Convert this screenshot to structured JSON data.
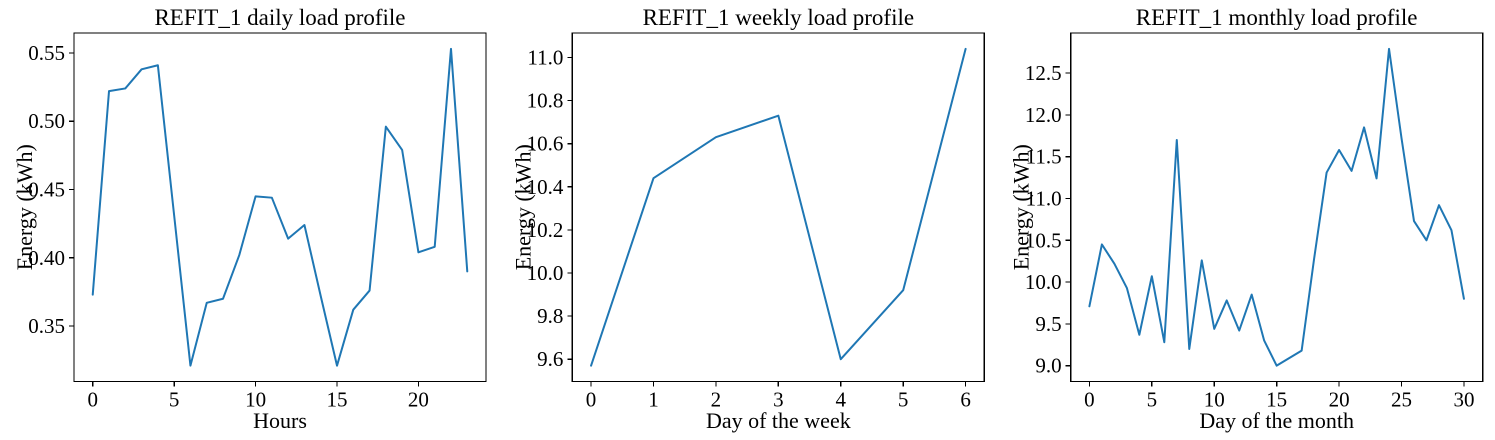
{
  "figure": {
    "background_color": "#ffffff",
    "line_color": "#1f77b4",
    "axis_color": "#000000",
    "text_color": "#000000"
  },
  "chart_data": [
    {
      "id": "daily",
      "type": "line",
      "title": "REFIT_1 daily load profile",
      "xlabel": "Hours",
      "ylabel": "Energy (kWh)",
      "x": [
        0,
        1,
        2,
        3,
        4,
        5,
        6,
        7,
        8,
        9,
        10,
        11,
        12,
        13,
        14,
        15,
        16,
        17,
        18,
        19,
        20,
        21,
        22,
        23
      ],
      "values": [
        0.373,
        0.522,
        0.524,
        0.538,
        0.541,
        0.431,
        0.321,
        0.367,
        0.37,
        0.402,
        0.445,
        0.444,
        0.414,
        0.424,
        0.372,
        0.321,
        0.362,
        0.376,
        0.496,
        0.479,
        0.404,
        0.408,
        0.553,
        0.39
      ],
      "xlim": [
        -1.15,
        24.15
      ],
      "ylim": [
        0.3094,
        0.5646
      ],
      "xticks": [
        0,
        5,
        10,
        15,
        20
      ],
      "xtick_labels": [
        "0",
        "5",
        "10",
        "15",
        "20"
      ],
      "yticks": [
        0.35,
        0.4,
        0.45,
        0.5,
        0.55
      ],
      "ytick_labels": [
        "0.35",
        "0.40",
        "0.45",
        "0.50",
        "0.55"
      ],
      "grid": false,
      "legend": "none"
    },
    {
      "id": "weekly",
      "type": "line",
      "title": "REFIT_1 weekly load profile",
      "xlabel": "Day of the week",
      "ylabel": "Energy (kWh)",
      "x": [
        0,
        1,
        2,
        3,
        4,
        5,
        6
      ],
      "values": [
        9.57,
        10.44,
        10.63,
        10.73,
        9.6,
        9.92,
        11.04
      ],
      "xlim": [
        -0.3,
        6.3
      ],
      "ylim": [
        9.4965,
        11.1135
      ],
      "xticks": [
        0,
        1,
        2,
        3,
        4,
        5,
        6
      ],
      "xtick_labels": [
        "0",
        "1",
        "2",
        "3",
        "4",
        "5",
        "6"
      ],
      "yticks": [
        9.6,
        9.8,
        10.0,
        10.2,
        10.4,
        10.6,
        10.8,
        11.0
      ],
      "ytick_labels": [
        "9.6",
        "9.8",
        "10.0",
        "10.2",
        "10.4",
        "10.6",
        "10.8",
        "11.0"
      ],
      "grid": false,
      "legend": "none"
    },
    {
      "id": "monthly",
      "type": "line",
      "title": "REFIT_1 monthly load profile",
      "xlabel": "Day of the month",
      "ylabel": "Energy (kWh)",
      "x": [
        0,
        1,
        2,
        3,
        4,
        5,
        6,
        7,
        8,
        9,
        10,
        11,
        12,
        13,
        14,
        15,
        16,
        17,
        18,
        19,
        20,
        21,
        22,
        23,
        24,
        25,
        26,
        27,
        28,
        29,
        30
      ],
      "values": [
        9.71,
        10.45,
        10.22,
        9.93,
        9.37,
        10.07,
        9.28,
        11.7,
        9.2,
        10.26,
        9.44,
        9.78,
        9.42,
        9.85,
        9.3,
        9.0,
        9.09,
        9.18,
        10.28,
        11.31,
        11.58,
        11.33,
        11.85,
        11.24,
        12.79,
        11.72,
        10.73,
        10.5,
        10.92,
        10.62,
        9.8
      ],
      "xlim": [
        -1.5,
        31.5
      ],
      "ylim": [
        8.8105,
        12.9795
      ],
      "xticks": [
        0,
        5,
        10,
        15,
        20,
        25,
        30
      ],
      "xtick_labels": [
        "0",
        "5",
        "10",
        "15",
        "20",
        "25",
        "30"
      ],
      "yticks": [
        9.0,
        9.5,
        10.0,
        10.5,
        11.0,
        11.5,
        12.0,
        12.5
      ],
      "ytick_labels": [
        "9.0",
        "9.5",
        "10.0",
        "10.5",
        "11.0",
        "11.5",
        "12.0",
        "12.5"
      ],
      "grid": false,
      "legend": "none"
    }
  ]
}
